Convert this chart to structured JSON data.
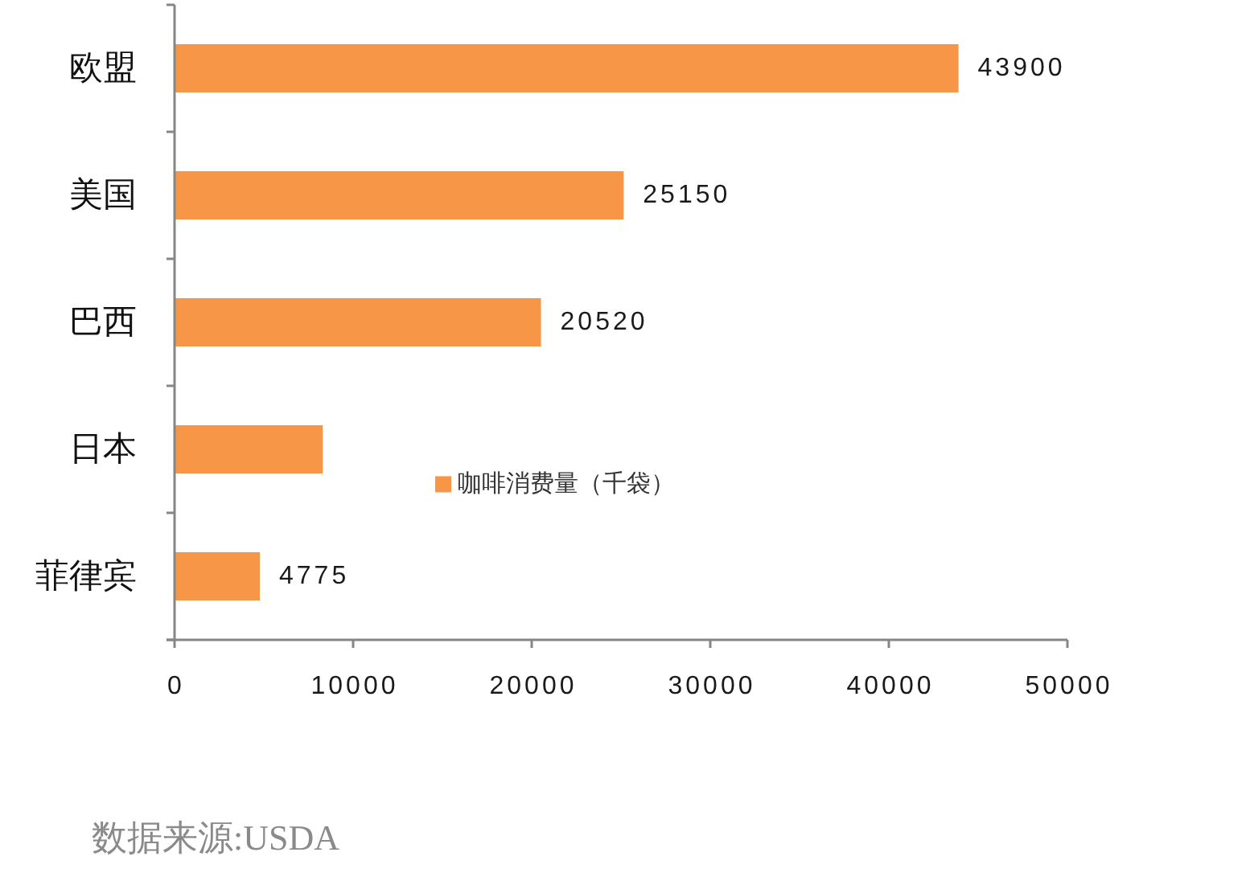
{
  "chart_data": {
    "type": "bar",
    "orientation": "horizontal",
    "categories": [
      "欧盟",
      "美国",
      "巴西",
      "日本",
      "菲律宾"
    ],
    "series": [
      {
        "name": "咖啡消费量（千袋）",
        "color": "#f79646",
        "values": [
          43900,
          25150,
          20520,
          8300,
          4775
        ],
        "value_labels": [
          "43900",
          "25150",
          "20520",
          null,
          "4775"
        ]
      }
    ],
    "xlim": [
      0,
      50000
    ],
    "xticks": [
      0,
      10000,
      20000,
      30000,
      40000,
      50000
    ],
    "legend": "bottom",
    "annotations": [
      "数据来源:USDA"
    ]
  }
}
